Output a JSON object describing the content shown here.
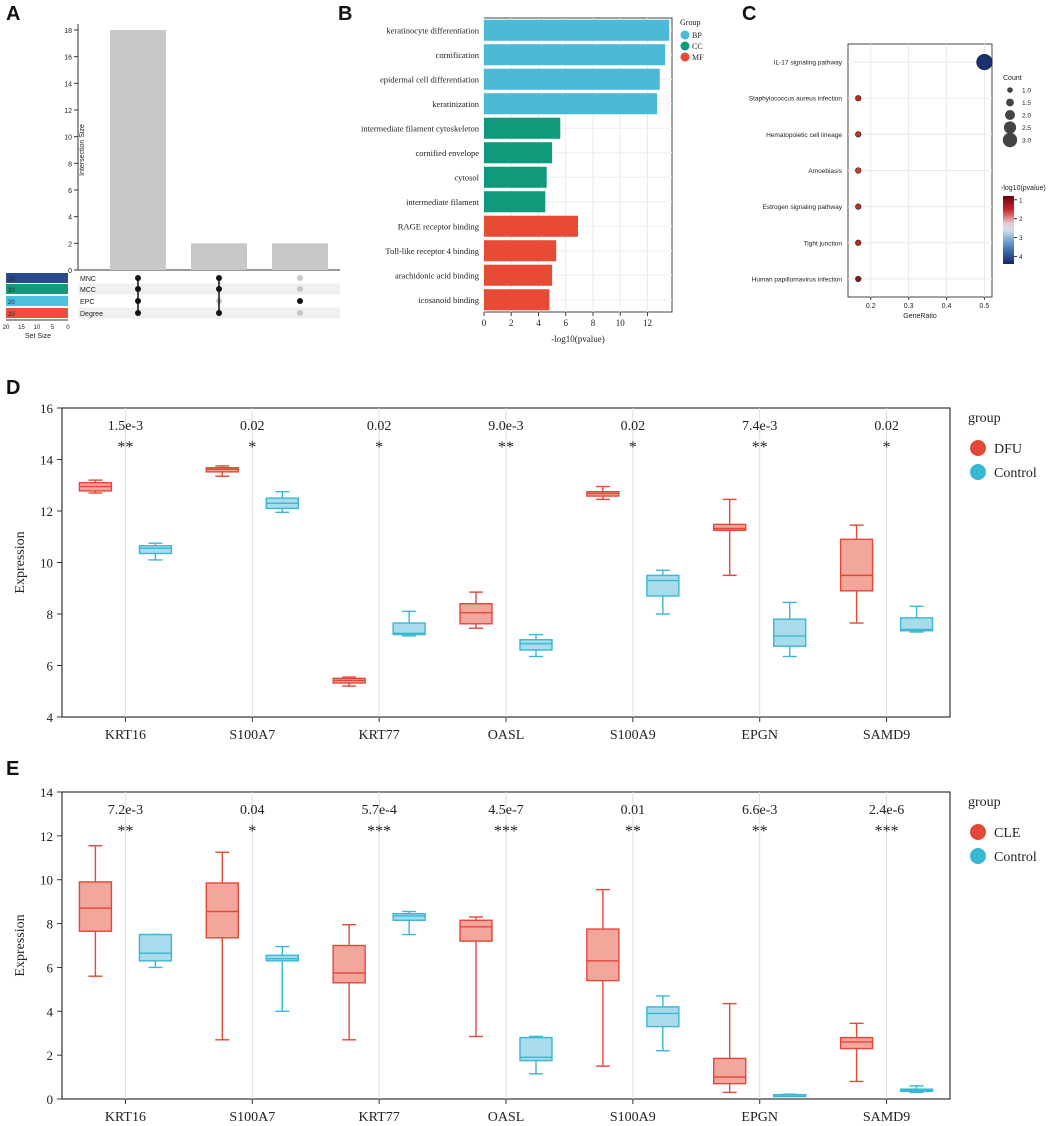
{
  "panels": {
    "a": "A",
    "b": "B",
    "c": "C",
    "d": "D",
    "e": "E"
  },
  "colors": {
    "gray_bar": "#c8c8c8",
    "mnc": "#2b4a8a",
    "mcc": "#139a7e",
    "epc": "#4cc0dd",
    "degree": "#e6503c",
    "bp": "#4cbad6",
    "cc": "#0f9a7c",
    "mf": "#e84b35",
    "box_red_fill": "#f2a69c",
    "box_red_line": "#e4473a",
    "box_blue_fill": "#a8dcea",
    "box_blue_line": "#3ab7d3"
  },
  "chart_data": [
    {
      "id": "A",
      "type": "bar",
      "subtype": "upset",
      "ylabel": "Intersection Size",
      "ylim": [
        0,
        18
      ],
      "yticks": [
        "0",
        "2",
        "4",
        "6",
        "8",
        "10",
        "12",
        "14",
        "16",
        "18"
      ],
      "intersection_sizes": [
        18,
        2,
        2
      ],
      "set_names": [
        "MNC",
        "MCC",
        "EPC",
        "Degree"
      ],
      "set_sizes": [
        "20",
        "20",
        "20",
        "20"
      ],
      "set_size_label": "Set Size",
      "set_size_ticks": [
        "20",
        "15",
        "10",
        "5",
        "0"
      ],
      "matrix": [
        [
          1,
          1,
          1,
          1
        ],
        [
          1,
          1,
          0,
          1
        ],
        [
          0,
          0,
          1,
          0
        ]
      ]
    },
    {
      "id": "B",
      "type": "bar",
      "orientation": "horizontal",
      "categories": [
        "keratinocyte differentiation",
        "cornification",
        "epidermal cell differentiation",
        "keratinization",
        "intermediate filament cytoskeleton",
        "cornified envelope",
        "cytosol",
        "intermediate filament",
        "RAGE receptor binding",
        "Toll-like receptor 4 binding",
        "arachidonic acid binding",
        "icosanoid binding"
      ],
      "values": [
        13.6,
        13.3,
        12.9,
        12.7,
        5.6,
        5.0,
        4.6,
        4.5,
        6.9,
        5.3,
        5.0,
        4.8
      ],
      "groups": [
        "BP",
        "BP",
        "BP",
        "BP",
        "CC",
        "CC",
        "CC",
        "CC",
        "MF",
        "MF",
        "MF",
        "MF"
      ],
      "xlabel": "-log10(pvalue)",
      "xlim": [
        0,
        13.8
      ],
      "xticks": [
        "0",
        "2",
        "4",
        "6",
        "8",
        "10",
        "12"
      ],
      "legend_title": "Group",
      "legend": [
        "BP",
        "CC",
        "MF"
      ]
    },
    {
      "id": "C",
      "type": "scatter",
      "categories": [
        "IL-17 signaling pathway",
        "Staphylococcus aureus infection",
        "Hematopoietic cell lineage",
        "Amoebiasis",
        "Estrogen signaling pathway",
        "Tight junction",
        "Human papillomavirus infection"
      ],
      "x": [
        0.5,
        0.167,
        0.167,
        0.167,
        0.167,
        0.167,
        0.167
      ],
      "count": [
        3,
        1,
        1,
        1,
        1,
        1,
        1
      ],
      "neglog10p": [
        4.3,
        1.5,
        1.55,
        1.6,
        1.5,
        1.45,
        1.1
      ],
      "xlabel": "GeneRatio",
      "xlim": [
        0.14,
        0.52
      ],
      "xticks": [
        "0.2",
        "0.3",
        "0.4",
        "0.5"
      ],
      "size_legend_title": "Count",
      "size_legend": [
        "1.0",
        "1.5",
        "2.0",
        "2.5",
        "3.0"
      ],
      "color_legend_title": "-log10(pvalue)",
      "color_ticks": [
        "1",
        "2",
        "3",
        "4"
      ],
      "color_range": [
        0.8,
        4.4
      ]
    },
    {
      "id": "D",
      "type": "box",
      "categories": [
        "KRT16",
        "S100A7",
        "KRT77",
        "OASL",
        "S100A9",
        "EPGN",
        "SAMD9"
      ],
      "ylabel": "Expression",
      "ylim": [
        4,
        16
      ],
      "yticks": [
        "4",
        "6",
        "8",
        "10",
        "12",
        "14",
        "16"
      ],
      "pvalues": [
        "1.5e-3",
        "0.02",
        "0.02",
        "9.0e-3",
        "0.02",
        "7.4e-3",
        "0.02"
      ],
      "stars": [
        "**",
        "*",
        "*",
        "**",
        "*",
        "**",
        "*"
      ],
      "legend_title": "group",
      "series": [
        {
          "name": "DFU",
          "boxes": [
            [
              12.7,
              12.78,
              12.95,
              13.1,
              13.2
            ],
            [
              13.35,
              13.52,
              13.62,
              13.68,
              13.75
            ],
            [
              5.2,
              5.32,
              5.42,
              5.5,
              5.55
            ],
            [
              7.45,
              7.62,
              8.05,
              8.4,
              8.85
            ],
            [
              12.45,
              12.58,
              12.68,
              12.75,
              12.95
            ],
            [
              9.5,
              11.25,
              11.32,
              11.48,
              12.45
            ],
            [
              7.65,
              8.9,
              9.5,
              10.9,
              11.45
            ]
          ]
        },
        {
          "name": "Control",
          "boxes": [
            [
              10.1,
              10.35,
              10.55,
              10.65,
              10.75
            ],
            [
              11.95,
              12.1,
              12.3,
              12.5,
              12.75
            ],
            [
              7.15,
              7.2,
              7.25,
              7.65,
              8.1
            ],
            [
              6.35,
              6.6,
              6.85,
              7.0,
              7.2
            ],
            [
              8.0,
              8.7,
              9.3,
              9.5,
              9.7
            ],
            [
              6.35,
              6.75,
              7.15,
              7.8,
              8.45
            ],
            [
              7.3,
              7.35,
              7.4,
              7.85,
              8.3
            ]
          ]
        }
      ]
    },
    {
      "id": "E",
      "type": "box",
      "categories": [
        "KRT16",
        "S100A7",
        "KRT77",
        "OASL",
        "S100A9",
        "EPGN",
        "SAMD9"
      ],
      "ylabel": "Expression",
      "ylim": [
        0,
        14
      ],
      "yticks": [
        "0",
        "2",
        "4",
        "6",
        "8",
        "10",
        "12",
        "14"
      ],
      "pvalues": [
        "7.2e-3",
        "0.04",
        "5.7e-4",
        "4.5e-7",
        "0.01",
        "6.6e-3",
        "2.4e-6"
      ],
      "stars": [
        "**",
        "*",
        "***",
        "***",
        "**",
        "**",
        "***"
      ],
      "legend_title": "group",
      "series": [
        {
          "name": "CLE",
          "boxes": [
            [
              5.6,
              7.65,
              8.7,
              9.9,
              11.55
            ],
            [
              2.7,
              7.35,
              8.55,
              9.85,
              11.25
            ],
            [
              2.7,
              5.3,
              5.75,
              7.0,
              7.95
            ],
            [
              2.85,
              7.2,
              7.85,
              8.15,
              8.3
            ],
            [
              1.5,
              5.4,
              6.3,
              7.75,
              9.55
            ],
            [
              0.3,
              0.7,
              1.0,
              1.85,
              4.35
            ],
            [
              0.8,
              2.3,
              2.6,
              2.8,
              3.45
            ]
          ]
        },
        {
          "name": "Control",
          "boxes": [
            [
              6.0,
              6.3,
              6.65,
              7.5,
              7.5
            ],
            [
              4.0,
              6.3,
              6.4,
              6.55,
              6.95
            ],
            [
              7.5,
              8.15,
              8.35,
              8.45,
              8.55
            ],
            [
              1.15,
              1.75,
              1.9,
              2.8,
              2.85
            ],
            [
              2.2,
              3.3,
              3.9,
              4.2,
              4.7
            ],
            [
              0.14,
              0.16,
              0.18,
              0.2,
              0.22
            ],
            [
              0.3,
              0.35,
              0.4,
              0.45,
              0.6
            ]
          ]
        }
      ]
    }
  ]
}
